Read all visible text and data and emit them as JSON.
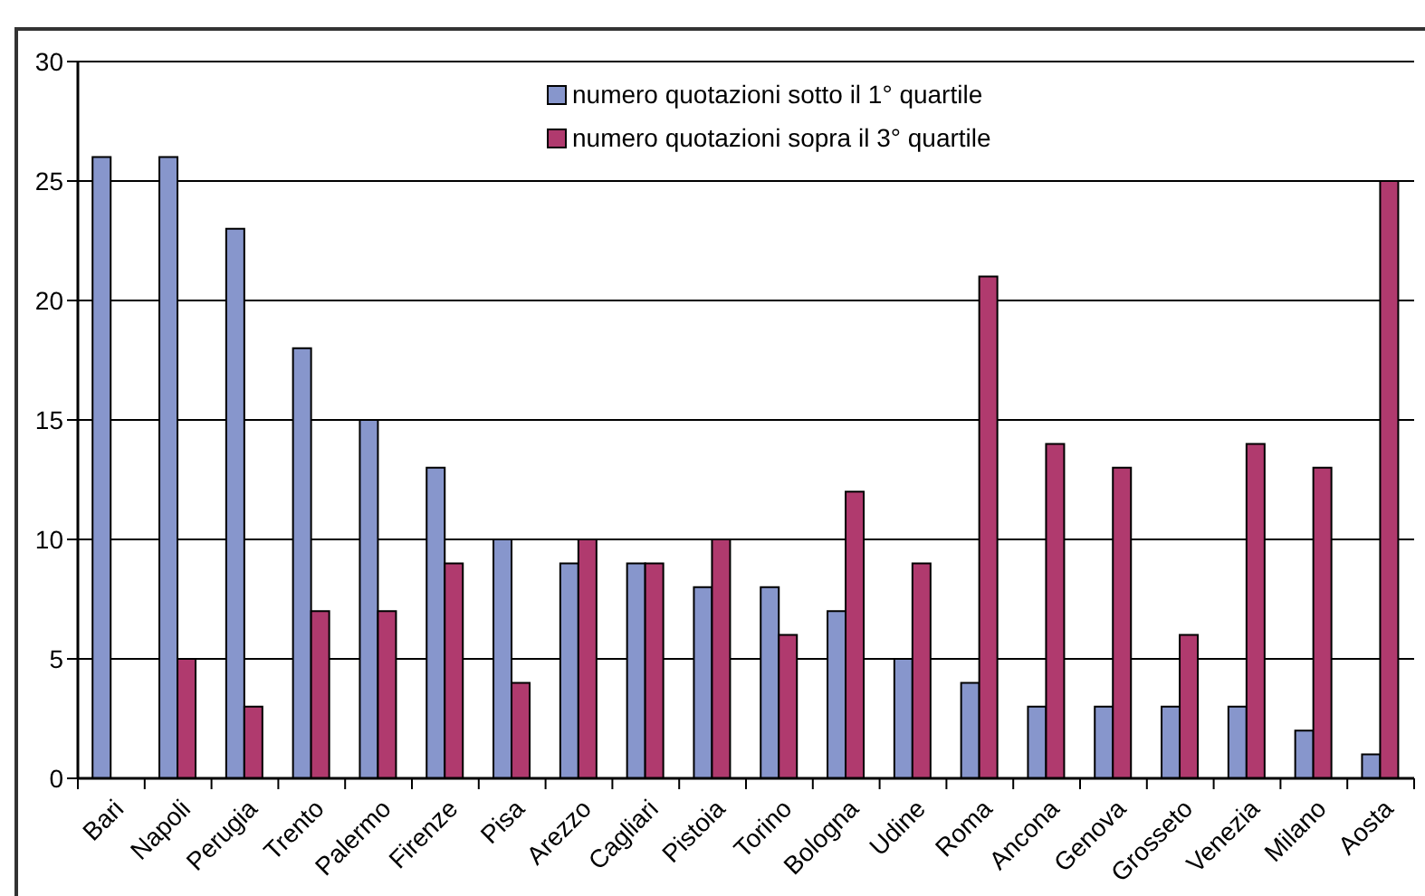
{
  "chart_data": {
    "type": "bar",
    "categories": [
      "Bari",
      "Napoli",
      "Perugia",
      "Trento",
      "Palermo",
      "Firenze",
      "Pisa",
      "Arezzo",
      "Cagliari",
      "Pistoia",
      "Torino",
      "Bologna",
      "Udine",
      "Roma",
      "Ancona",
      "Genova",
      "Grosseto",
      "Venezia",
      "Milano",
      "Aosta"
    ],
    "series": [
      {
        "name": "numero quotazioni sotto il 1° quartile",
        "color": "#8796cc",
        "values": [
          26,
          26,
          23,
          18,
          15,
          13,
          10,
          9,
          9,
          8,
          8,
          7,
          5,
          4,
          3,
          3,
          3,
          3,
          2,
          1
        ]
      },
      {
        "name": "numero quotazioni sopra il 3° quartile",
        "color": "#b03a6e",
        "values": [
          0,
          5,
          3,
          7,
          7,
          9,
          4,
          10,
          9,
          10,
          6,
          12,
          9,
          21,
          14,
          13,
          6,
          14,
          13,
          25
        ]
      }
    ],
    "ylim": [
      0,
      30
    ],
    "yticks": [
      0,
      5,
      10,
      15,
      20,
      25,
      30
    ],
    "grid": "y",
    "legend": "top"
  }
}
